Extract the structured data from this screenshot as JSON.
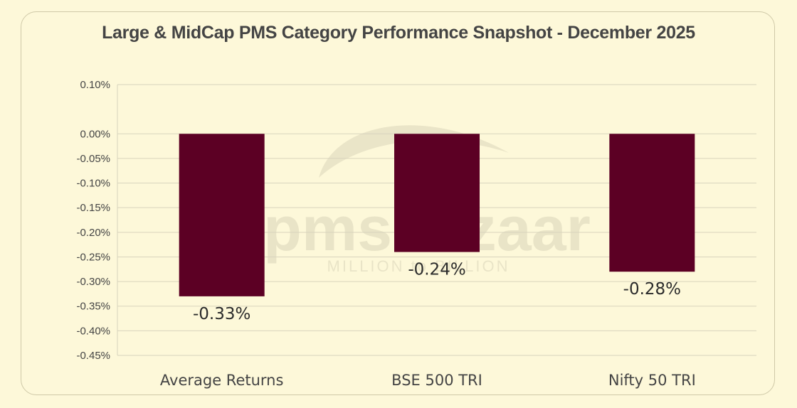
{
  "colors": {
    "background": "#fdf8d9",
    "bar": "#5c0024",
    "grid": "#d8d4bd",
    "text": "#444444"
  },
  "watermark": {
    "brand": "pmsbazaar",
    "tagline": "MILLION to BILLION"
  },
  "chart_data": {
    "type": "bar",
    "title": "Large & MidCap PMS Category Performance Snapshot - December 2025",
    "categories": [
      "Average Returns",
      "BSE 500 TRI",
      "Nifty 50 TRI"
    ],
    "values": [
      -0.33,
      -0.24,
      -0.28
    ],
    "data_labels": [
      "-0.33%",
      "-0.24%",
      "-0.28%"
    ],
    "ylim": [
      -0.45,
      0.1
    ],
    "yticks": [
      0.1,
      0.0,
      -0.05,
      -0.1,
      -0.15,
      -0.2,
      -0.25,
      -0.3,
      -0.35,
      -0.4,
      -0.45
    ],
    "ytick_labels": [
      "0.10%",
      "0.00%",
      "-0.05%",
      "-0.10%",
      "-0.15%",
      "-0.20%",
      "-0.25%",
      "-0.30%",
      "-0.35%",
      "-0.40%",
      "-0.45%"
    ],
    "grid": true,
    "legend": "none"
  }
}
